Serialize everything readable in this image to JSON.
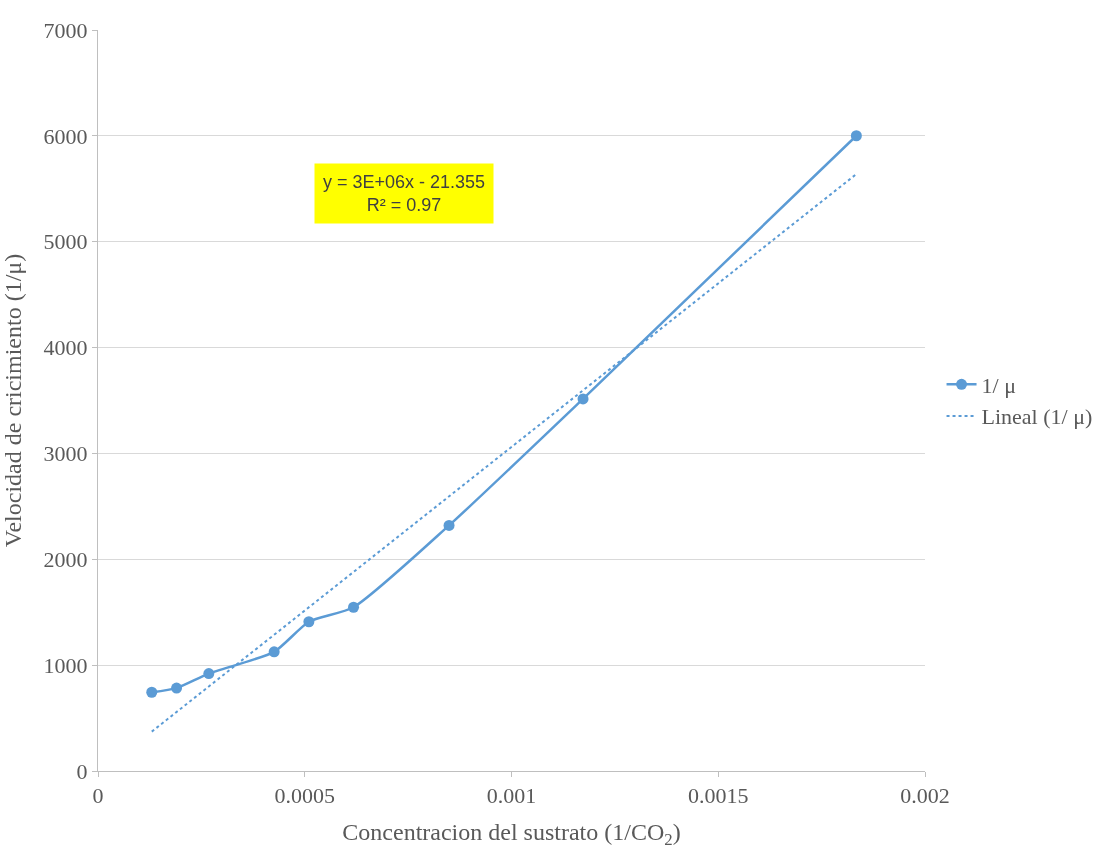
{
  "chart_data": {
    "type": "line",
    "xlabel": "Concentracion del sustrato (1/CO$_{2}$)",
    "ylabel": "Velocidad de cricimiento (1/μ)",
    "x": [
      0.00013,
      0.00019,
      0.000268,
      0.000426,
      0.00051,
      0.000618,
      0.000849,
      0.001173,
      0.001834
    ],
    "series": [
      {
        "name": "1/ μ",
        "color": "#5b9bd5",
        "marker": "circle",
        "line_style": "solid",
        "values": [
          744,
          783,
          920,
          1126,
          1410,
          1547,
          2320,
          3515,
          6001
        ]
      },
      {
        "name": "Lineal (1/ μ)",
        "type": "line",
        "color": "#5b9bd5",
        "marker": "none",
        "line_style": "dotted",
        "x": [
          0.00013,
          0.001834
        ],
        "values": [
          372,
          5639
        ]
      }
    ],
    "annotations": [
      "y = 3E+06x - 21.355\nR² = 0.97"
    ],
    "xlim": [
      0,
      0.002
    ],
    "xticks": [
      0,
      0.0005,
      0.001,
      0.0015,
      0.002
    ],
    "ylim": [
      0,
      7000
    ],
    "yticks": [
      0,
      1000,
      2000,
      3000,
      4000,
      5000,
      6000,
      7000
    ],
    "grid": "y",
    "legend": "right"
  }
}
